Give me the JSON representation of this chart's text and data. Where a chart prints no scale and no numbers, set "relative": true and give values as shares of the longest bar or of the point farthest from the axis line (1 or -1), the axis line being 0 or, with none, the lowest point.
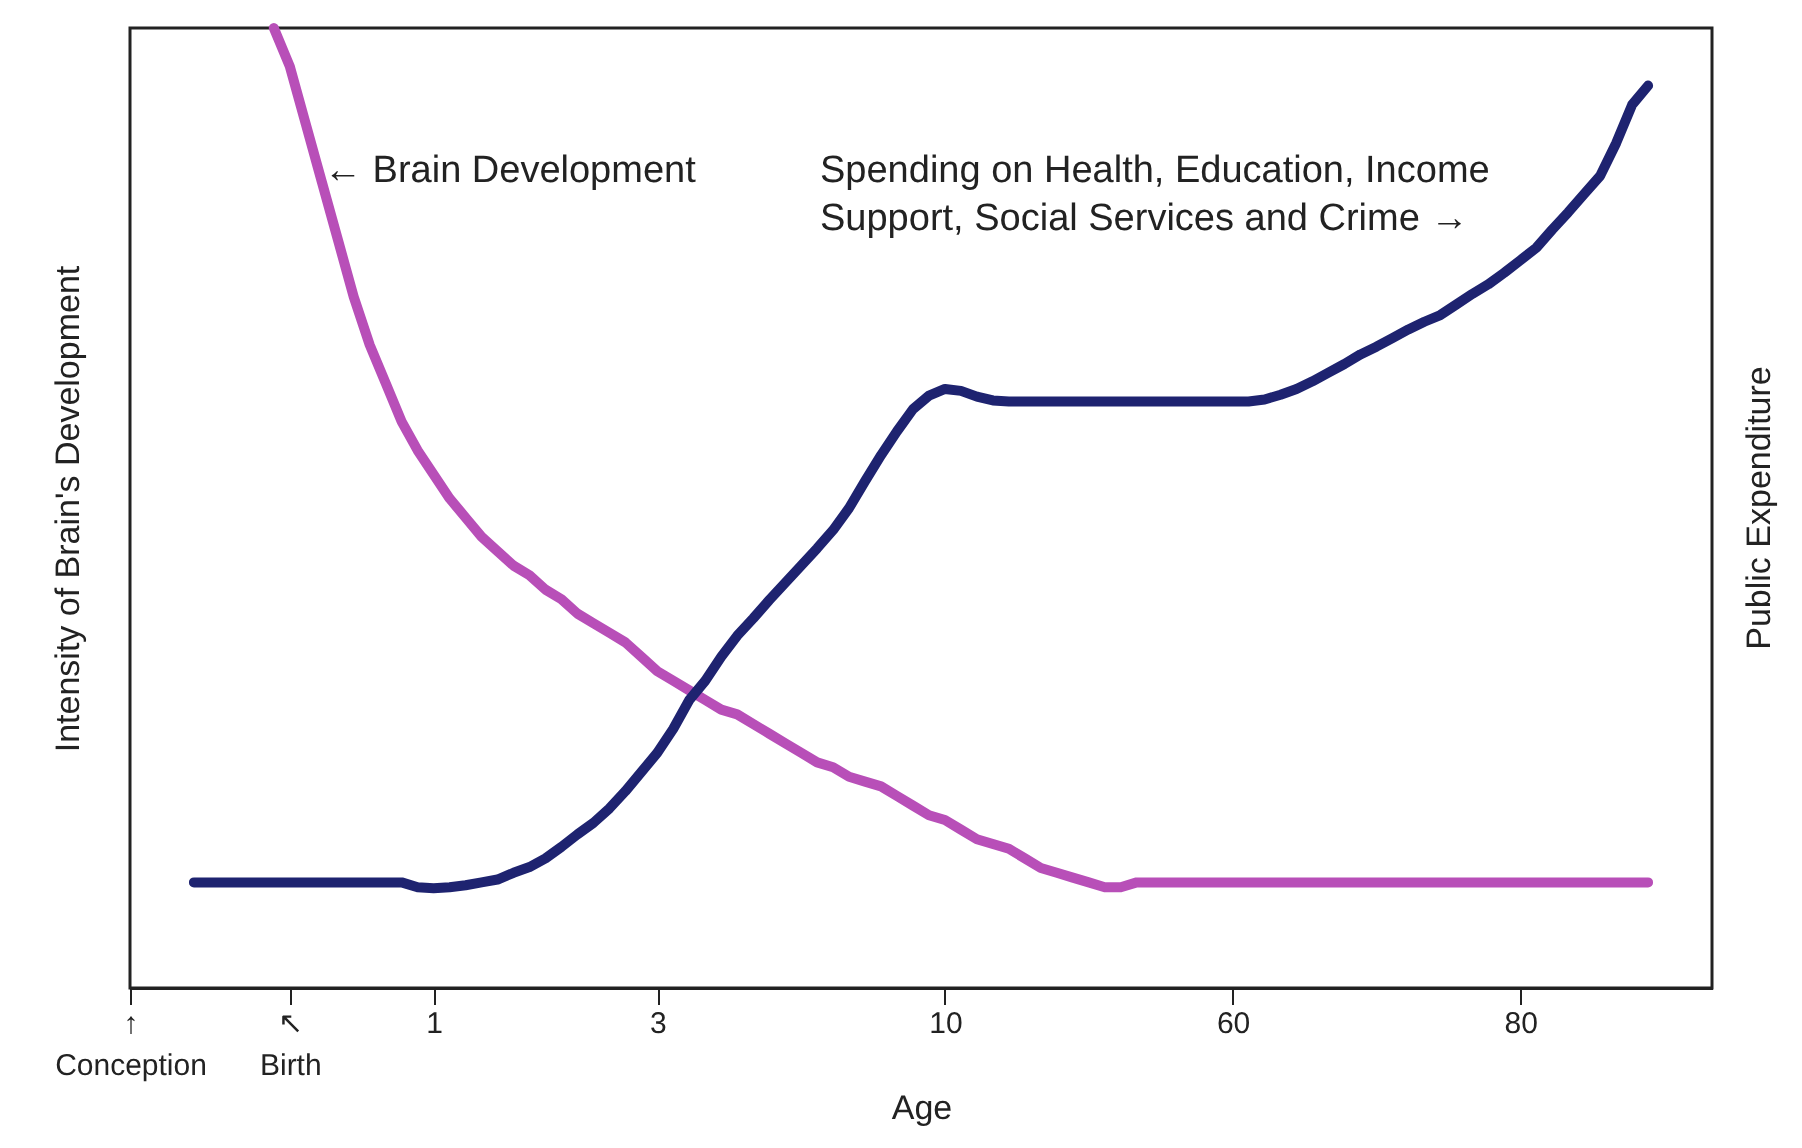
{
  "chart_data": {
    "type": "line",
    "relative": true,
    "xlabel": "Age",
    "ylabel": "Intensity of Brain's Development",
    "y2label": "Public Expenditure",
    "categories": [
      "↑\nConception",
      null,
      null,
      null,
      null,
      null,
      null,
      null,
      null,
      null,
      "↖\nBirth",
      null,
      null,
      null,
      null,
      null,
      null,
      null,
      null,
      "1",
      null,
      null,
      null,
      null,
      null,
      null,
      null,
      null,
      null,
      null,
      null,
      null,
      null,
      "3",
      null,
      null,
      null,
      null,
      null,
      null,
      null,
      null,
      null,
      null,
      null,
      null,
      null,
      null,
      null,
      null,
      null,
      "10",
      null,
      null,
      null,
      null,
      null,
      null,
      null,
      null,
      null,
      null,
      null,
      null,
      null,
      null,
      null,
      null,
      null,
      "60",
      null,
      null,
      null,
      null,
      null,
      null,
      null,
      null,
      null,
      null,
      null,
      null,
      null,
      null,
      null,
      null,
      null,
      "80",
      null,
      null,
      null,
      null,
      null,
      null,
      null,
      null,
      null,
      null,
      null,
      null
    ],
    "annotations": [
      "← Brain Development",
      "Spending on Health, Education, Income Support, Social Services and Crime →"
    ],
    "series": [
      {
        "color": "#b84fb8",
        "values": [
          null,
          null,
          null,
          null,
          null,
          null,
          null,
          null,
          null,
          1.0,
          0.96,
          0.9,
          0.84,
          0.78,
          0.72,
          0.67,
          0.63,
          0.59,
          0.56,
          0.535,
          0.51,
          0.49,
          0.47,
          0.455,
          0.44,
          0.43,
          0.415,
          0.405,
          0.39,
          0.38,
          0.37,
          0.36,
          0.345,
          0.33,
          0.32,
          0.31,
          0.3,
          0.29,
          0.285,
          0.275,
          0.265,
          0.255,
          0.245,
          0.235,
          0.23,
          0.22,
          0.215,
          0.21,
          0.2,
          0.19,
          0.18,
          0.175,
          0.165,
          0.155,
          0.15,
          0.145,
          0.135,
          0.125,
          0.12,
          0.115,
          0.11,
          0.105,
          0.105,
          0.11,
          0.11,
          0.11,
          0.11,
          0.11,
          0.11,
          0.11,
          0.11,
          0.11,
          0.11,
          0.11,
          0.11,
          0.11,
          0.11,
          0.11,
          0.11,
          0.11,
          0.11,
          0.11,
          0.11,
          0.11,
          0.11,
          0.11,
          0.11,
          0.11,
          0.11,
          0.11,
          0.11,
          0.11,
          0.11,
          0.11,
          0.11,
          0.11,
          null,
          null,
          null,
          null
        ]
      },
      {
        "color": "#1e2370",
        "values": [
          null,
          null,
          null,
          null,
          0.11,
          0.11,
          0.11,
          0.11,
          0.11,
          0.11,
          0.11,
          0.11,
          0.11,
          0.11,
          0.11,
          0.11,
          0.11,
          0.11,
          0.105,
          0.104,
          0.105,
          0.107,
          0.11,
          0.113,
          0.12,
          0.126,
          0.135,
          0.147,
          0.16,
          0.172,
          0.187,
          0.205,
          0.225,
          0.245,
          0.27,
          0.3,
          0.32,
          0.345,
          0.367,
          0.385,
          0.404,
          0.422,
          0.44,
          0.458,
          0.477,
          0.5,
          0.528,
          0.555,
          0.58,
          0.603,
          0.617,
          0.624,
          0.622,
          0.616,
          0.612,
          0.611,
          0.611,
          0.611,
          0.611,
          0.611,
          0.611,
          0.611,
          0.611,
          0.611,
          0.611,
          0.611,
          0.611,
          0.611,
          0.611,
          0.611,
          0.611,
          0.613,
          0.618,
          0.624,
          0.632,
          0.641,
          0.65,
          0.66,
          0.668,
          0.677,
          0.686,
          0.694,
          0.701,
          0.712,
          0.723,
          0.733,
          0.745,
          0.758,
          0.771,
          0.79,
          0.808,
          0.827,
          0.846,
          0.88,
          0.92,
          0.94,
          null,
          null,
          null,
          null
        ]
      }
    ]
  }
}
